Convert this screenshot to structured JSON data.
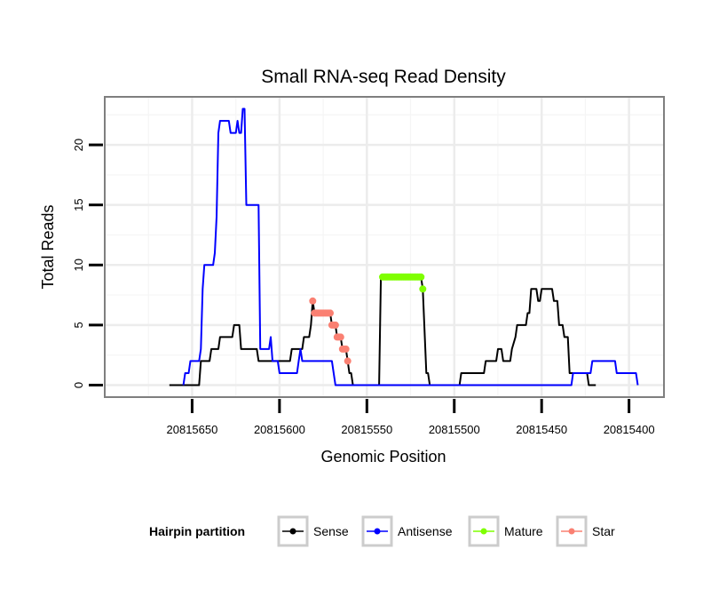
{
  "chart_data": {
    "type": "line",
    "title": "Small RNA-seq Read Density",
    "xlabel": "Genomic Position",
    "ylabel": "Total Reads",
    "xlim": [
      20815700,
      20815380
    ],
    "ylim": [
      -1,
      24
    ],
    "x_reversed": true,
    "x_ticks": [
      20815650,
      20815600,
      20815550,
      20815500,
      20815450,
      20815400
    ],
    "x_tick_labels": [
      "20815650",
      "20815600",
      "20815550",
      "20815500",
      "20815450",
      "20815400"
    ],
    "y_ticks": [
      0,
      5,
      10,
      15,
      20
    ],
    "y_tick_labels": [
      "0",
      "5",
      "10",
      "15",
      "20"
    ],
    "grid": true,
    "legend": {
      "title": "Hairpin partition",
      "position": "bottom",
      "entries": [
        {
          "name": "Sense",
          "color": "#000000"
        },
        {
          "name": "Antisense",
          "color": "#0000ff"
        },
        {
          "name": "Mature",
          "color": "#7fff00"
        },
        {
          "name": "Star",
          "color": "#fa8072"
        }
      ]
    },
    "series": [
      {
        "name": "Sense",
        "color": "#000000",
        "kind": "line",
        "points": [
          [
            20815663,
            0
          ],
          [
            20815654,
            0
          ],
          [
            20815653,
            0
          ],
          [
            20815646,
            0
          ],
          [
            20815645,
            2
          ],
          [
            20815640,
            2
          ],
          [
            20815639,
            3
          ],
          [
            20815635,
            3
          ],
          [
            20815634,
            4
          ],
          [
            20815627,
            4
          ],
          [
            20815626,
            5
          ],
          [
            20815623,
            5
          ],
          [
            20815622,
            3
          ],
          [
            20815613,
            3
          ],
          [
            20815612,
            2
          ],
          [
            20815594,
            2
          ],
          [
            20815593,
            3
          ],
          [
            20815587,
            3
          ],
          [
            20815586,
            4
          ],
          [
            20815583,
            4
          ],
          [
            20815582,
            5
          ],
          [
            20815581,
            7
          ],
          [
            20815580,
            6
          ],
          [
            20815571,
            6
          ],
          [
            20815570,
            5
          ],
          [
            20815568,
            5
          ],
          [
            20815567,
            4
          ],
          [
            20815565,
            4
          ],
          [
            20815564,
            3
          ],
          [
            20815562,
            3
          ],
          [
            20815561,
            2
          ],
          [
            20815560,
            1
          ],
          [
            20815559,
            1
          ],
          [
            20815558,
            0
          ],
          [
            20815544,
            0
          ],
          [
            20815543,
            0
          ],
          [
            20815542,
            9
          ],
          [
            20815535,
            9
          ],
          [
            20815520,
            9
          ],
          [
            20815519,
            9
          ],
          [
            20815518,
            8
          ],
          [
            20815516,
            1
          ],
          [
            20815515,
            1
          ],
          [
            20815514,
            0
          ],
          [
            20815497,
            0
          ],
          [
            20815496,
            1
          ],
          [
            20815483,
            1
          ],
          [
            20815482,
            2
          ],
          [
            20815476,
            2
          ],
          [
            20815475,
            3
          ],
          [
            20815473,
            3
          ],
          [
            20815472,
            2
          ],
          [
            20815468,
            2
          ],
          [
            20815467,
            3
          ],
          [
            20815465,
            4
          ],
          [
            20815464,
            5
          ],
          [
            20815459,
            5
          ],
          [
            20815458,
            6
          ],
          [
            20815457,
            6
          ],
          [
            20815456,
            8
          ],
          [
            20815453,
            8
          ],
          [
            20815452,
            7
          ],
          [
            20815451,
            7
          ],
          [
            20815450,
            8
          ],
          [
            20815444,
            8
          ],
          [
            20815443,
            7
          ],
          [
            20815441,
            7
          ],
          [
            20815440,
            5
          ],
          [
            20815438,
            5
          ],
          [
            20815437,
            4
          ],
          [
            20815435,
            4
          ],
          [
            20815434,
            1
          ],
          [
            20815425,
            1
          ],
          [
            20815424,
            1
          ],
          [
            20815423,
            0
          ],
          [
            20815419,
            0
          ]
        ]
      },
      {
        "name": "Antisense",
        "color": "#0000ff",
        "kind": "line",
        "points": [
          [
            20815655,
            0
          ],
          [
            20815654,
            1
          ],
          [
            20815652,
            1
          ],
          [
            20815651,
            2
          ],
          [
            20815646,
            2
          ],
          [
            20815645,
            3
          ],
          [
            20815644,
            8
          ],
          [
            20815643,
            10
          ],
          [
            20815638,
            10
          ],
          [
            20815637,
            11
          ],
          [
            20815636,
            14
          ],
          [
            20815635,
            21
          ],
          [
            20815634,
            22
          ],
          [
            20815629,
            22
          ],
          [
            20815628,
            21
          ],
          [
            20815625,
            21
          ],
          [
            20815624,
            22
          ],
          [
            20815623,
            21
          ],
          [
            20815622,
            21
          ],
          [
            20815621,
            23
          ],
          [
            20815620,
            23
          ],
          [
            20815619,
            15
          ],
          [
            20815612,
            15
          ],
          [
            20815611,
            3
          ],
          [
            20815606,
            3
          ],
          [
            20815605,
            4
          ],
          [
            20815604,
            2
          ],
          [
            20815601,
            2
          ],
          [
            20815600,
            1
          ],
          [
            20815590,
            1
          ],
          [
            20815589,
            2
          ],
          [
            20815588,
            3
          ],
          [
            20815587,
            2
          ],
          [
            20815570,
            2
          ],
          [
            20815569,
            1
          ],
          [
            20815568,
            0
          ],
          [
            20815528,
            0
          ],
          [
            20815468,
            0
          ],
          [
            20815433,
            0
          ],
          [
            20815432,
            1
          ],
          [
            20815422,
            1
          ],
          [
            20815421,
            2
          ],
          [
            20815408,
            2
          ],
          [
            20815407,
            1
          ],
          [
            20815396,
            1
          ],
          [
            20815395,
            0
          ]
        ]
      },
      {
        "name": "Mature",
        "color": "#7fff00",
        "kind": "dots",
        "points": [
          [
            20815541,
            9
          ],
          [
            20815540,
            9
          ],
          [
            20815539,
            9
          ],
          [
            20815538,
            9
          ],
          [
            20815537,
            9
          ],
          [
            20815536,
            9
          ],
          [
            20815535,
            9
          ],
          [
            20815534,
            9
          ],
          [
            20815533,
            9
          ],
          [
            20815532,
            9
          ],
          [
            20815531,
            9
          ],
          [
            20815530,
            9
          ],
          [
            20815529,
            9
          ],
          [
            20815528,
            9
          ],
          [
            20815527,
            9
          ],
          [
            20815526,
            9
          ],
          [
            20815525,
            9
          ],
          [
            20815524,
            9
          ],
          [
            20815523,
            9
          ],
          [
            20815522,
            9
          ],
          [
            20815521,
            9
          ],
          [
            20815520,
            9
          ],
          [
            20815519,
            9
          ],
          [
            20815518,
            8
          ]
        ]
      },
      {
        "name": "Star",
        "color": "#fa8072",
        "kind": "dots",
        "points": [
          [
            20815581,
            7
          ],
          [
            20815580,
            6
          ],
          [
            20815579,
            6
          ],
          [
            20815578,
            6
          ],
          [
            20815577,
            6
          ],
          [
            20815576,
            6
          ],
          [
            20815575,
            6
          ],
          [
            20815574,
            6
          ],
          [
            20815573,
            6
          ],
          [
            20815572,
            6
          ],
          [
            20815571,
            6
          ],
          [
            20815570,
            5
          ],
          [
            20815569,
            5
          ],
          [
            20815568,
            5
          ],
          [
            20815567,
            4
          ],
          [
            20815566,
            4
          ],
          [
            20815565,
            4
          ],
          [
            20815564,
            3
          ],
          [
            20815563,
            3
          ],
          [
            20815562,
            3
          ],
          [
            20815561,
            2
          ]
        ]
      }
    ]
  }
}
